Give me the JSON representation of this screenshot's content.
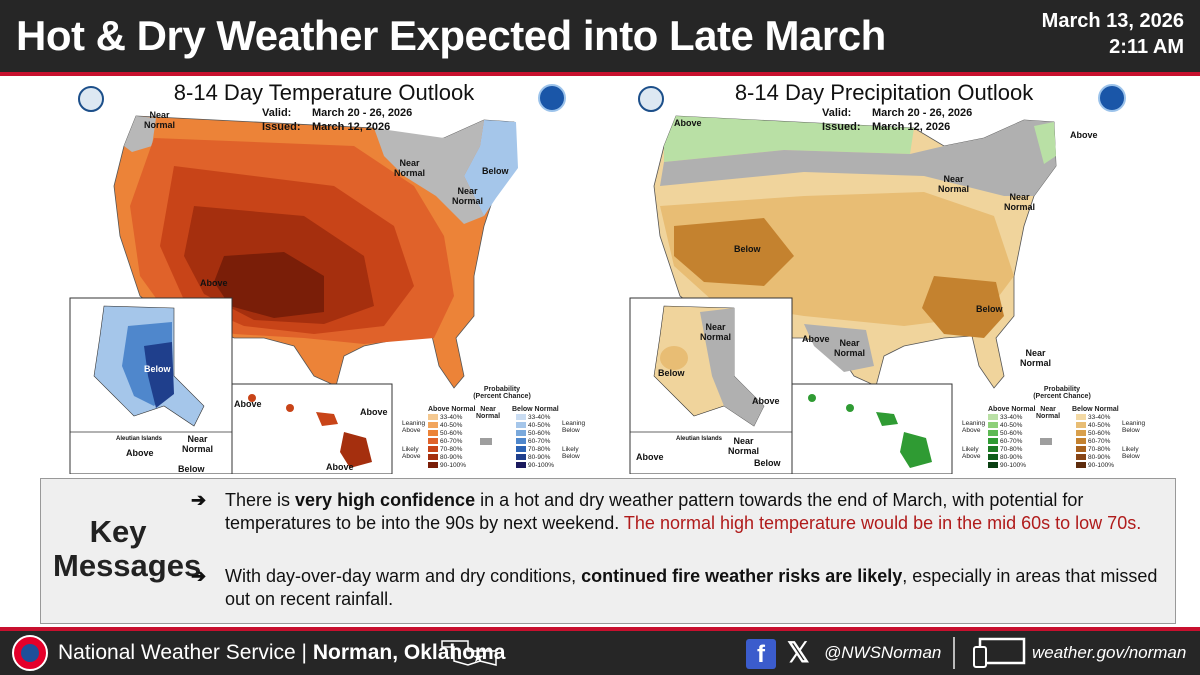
{
  "header": {
    "title": "Hot & Dry Weather Expected into Late March",
    "date": "March 13, 2026",
    "time": "2:11 AM"
  },
  "temp_panel": {
    "title": "8-14 Day Temperature Outlook",
    "valid_label": "Valid:",
    "valid_value": "March 20 - 26, 2026",
    "issued_label": "Issued:",
    "issued_value": "March 12, 2026",
    "labels": {
      "near_normal_nw": "Near\nNormal",
      "near_normal_gl": "Near\nNormal",
      "near_normal_ne": "Near\nNormal",
      "below_ne": "Below",
      "above_sw": "Above",
      "below_ak": "Below",
      "above_hi1": "Above",
      "above_hi2": "Above",
      "above_hi3": "Above",
      "aleutian": "Aleutian Islands",
      "above_al": "Above",
      "near_normal_al": "Near\nNormal",
      "below_al": "Below"
    },
    "legend": {
      "title": "Probability\n(Percent Chance)",
      "above_head": "Above Normal",
      "near_head": "Near\nNormal",
      "below_head": "Below Normal",
      "leaning_above": "Leaning\nAbove",
      "likely_above": "Likely\nAbove",
      "leaning_below": "Leaning\nBelow",
      "likely_below": "Likely\nBelow",
      "ranges": [
        "33-40%",
        "40-50%",
        "50-60%",
        "60-70%",
        "70-80%",
        "80-90%",
        "90-100%"
      ],
      "above_colors": [
        "#f4c890",
        "#f2a65e",
        "#ec8338",
        "#e0622a",
        "#c84418",
        "#a52f0e",
        "#7a1e08"
      ],
      "below_colors": [
        "#c9dcf2",
        "#a5c6ea",
        "#7aa9dc",
        "#4f87cc",
        "#2c63b4",
        "#1f3f8c",
        "#1b1a5e"
      ],
      "near_color": "#9e9e9e"
    }
  },
  "precip_panel": {
    "title": "8-14 Day Precipitation Outlook",
    "valid_label": "Valid:",
    "valid_value": "March 20 - 26, 2026",
    "issued_label": "Issued:",
    "issued_value": "March 12, 2026",
    "labels": {
      "above_nw": "Above",
      "above_ne": "Above",
      "near_normal_gl": "Near\nNormal",
      "near_normal_ne": "Near\nNormal",
      "below_sw": "Below",
      "below_se": "Below",
      "above_tx": "Above",
      "near_normal_tx": "Near\nNormal",
      "near_normal_fl": "Near\nNormal",
      "near_normal_ak": "Near\nNormal",
      "below_ak": "Below",
      "above_ak": "Above",
      "aleutian": "Aleutian Islands",
      "above_al": "Above",
      "near_normal_al": "Near\nNormal",
      "below_al": "Below"
    },
    "legend": {
      "title": "Probability\n(Percent Chance)",
      "above_head": "Above Normal",
      "near_head": "Near\nNormal",
      "below_head": "Below Normal",
      "leaning_above": "Leaning\nAbove",
      "likely_above": "Likely\nAbove",
      "leaning_below": "Leaning\nBelow",
      "likely_below": "Likely\nBelow",
      "ranges": [
        "33-40%",
        "40-50%",
        "50-60%",
        "60-70%",
        "70-80%",
        "80-90%",
        "90-100%"
      ],
      "above_colors": [
        "#b9e0a5",
        "#8ed07a",
        "#5db954",
        "#2f9b33",
        "#1c7c24",
        "#0f5e1a",
        "#0a3f12"
      ],
      "below_colors": [
        "#f3d9a4",
        "#e8bd74",
        "#d9a04c",
        "#c4822f",
        "#a8621e",
        "#874516",
        "#5e2c0d"
      ],
      "near_color": "#9e9e9e"
    }
  },
  "key": {
    "title": "Key\nMessages",
    "bullet_arrow": "➔",
    "b1_pre": "There is ",
    "b1_bold": "very high confidence",
    "b1_mid": " in a hot and dry weather pattern towards the end of March, with potential for temperatures to be into the 90s by next weekend. ",
    "b1_red": "The normal high temperature would be in the mid 60s to low 70s.",
    "b2_pre": "With day-over-day warm and dry conditions, ",
    "b2_bold": "continued fire weather risks are likely",
    "b2_post": ", especially in areas that missed out on recent rainfall."
  },
  "footer": {
    "org": "National Weather Service | ",
    "office": "Norman, Oklahoma",
    "fb": "f",
    "x": "𝕏",
    "handle": "@NWSNorman",
    "website": "weather.gov/norman"
  }
}
